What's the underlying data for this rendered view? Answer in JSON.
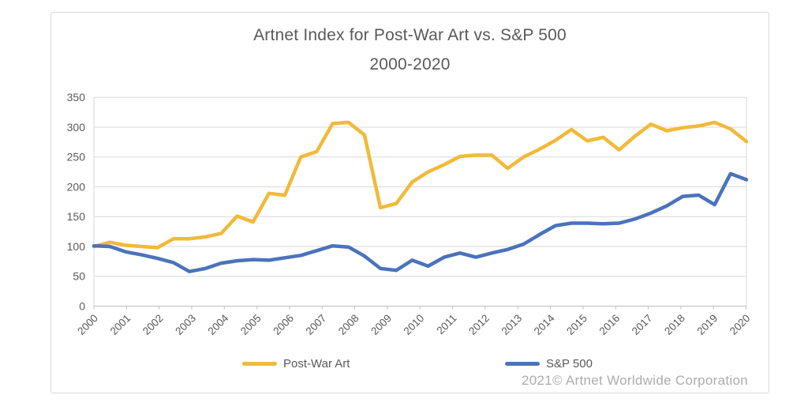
{
  "title": {
    "line1": "Artnet Index for Post-War Art vs. S&P 500",
    "line2": "2000-2020"
  },
  "footer": {
    "copyright": "2021© Artnet Worldwide Corporation"
  },
  "legend": {
    "post_war_label": "Post-War Art",
    "sp500_label": "S&P 500"
  },
  "colors": {
    "post_war": "#f2b93a",
    "sp500": "#4a73bb",
    "gridline": "#d9d9d9",
    "axis_line": "#bfbfbf",
    "tick_text": "#595959",
    "title_text": "#595959",
    "footer_text": "#acacac"
  },
  "chart_data": {
    "type": "line",
    "title": "Artnet Index for Post-War Art vs. S&P 500",
    "subtitle": "2000-2020",
    "xlabel": "",
    "ylabel": "",
    "ylim": [
      0,
      350
    ],
    "ytick_values": [
      0,
      50,
      100,
      150,
      200,
      250,
      300,
      350
    ],
    "xtick_labels": [
      "2000",
      "2001",
      "2002",
      "2003",
      "2004",
      "2005",
      "2006",
      "2007",
      "2008",
      "2009",
      "2010",
      "2011",
      "2012",
      "2013",
      "2014",
      "2015",
      "2016",
      "2017",
      "2018",
      "2019",
      "2020"
    ],
    "grid": "horizontal",
    "legend_position": "bottom",
    "x_unit": "half-year steps",
    "x": [
      2000,
      2000.5,
      2001,
      2001.5,
      2002,
      2002.5,
      2003,
      2003.5,
      2004,
      2004.5,
      2005,
      2005.5,
      2006,
      2006.5,
      2007,
      2007.5,
      2008,
      2008.5,
      2009,
      2009.5,
      2010,
      2010.5,
      2011,
      2011.5,
      2012,
      2012.5,
      2013,
      2013.5,
      2014,
      2014.5,
      2015,
      2015.5,
      2016,
      2016.5,
      2017,
      2017.5,
      2018,
      2018.5,
      2019,
      2019.5,
      2020,
      2020.5
    ],
    "series": [
      {
        "name": "Post-War Art",
        "color": "#f2b93a",
        "values": [
          100,
          107,
          102,
          100,
          98,
          113,
          113,
          116,
          122,
          151,
          141,
          189,
          186,
          250,
          259,
          306,
          308,
          287,
          165,
          172,
          208,
          225,
          237,
          251,
          253,
          253,
          231,
          250,
          263,
          278,
          296,
          277,
          283,
          262,
          285,
          305,
          294,
          299,
          302,
          308,
          297,
          276
        ]
      },
      {
        "name": "S&P 500",
        "color": "#4a73bb",
        "values": [
          101,
          100,
          91,
          86,
          80,
          73,
          58,
          63,
          72,
          76,
          78,
          77,
          81,
          85,
          93,
          101,
          99,
          84,
          63,
          60,
          77,
          67,
          82,
          89,
          82,
          89,
          95,
          104,
          120,
          135,
          139,
          139,
          138,
          139,
          146,
          156,
          168,
          184,
          186,
          170,
          222,
          212
        ]
      }
    ]
  }
}
